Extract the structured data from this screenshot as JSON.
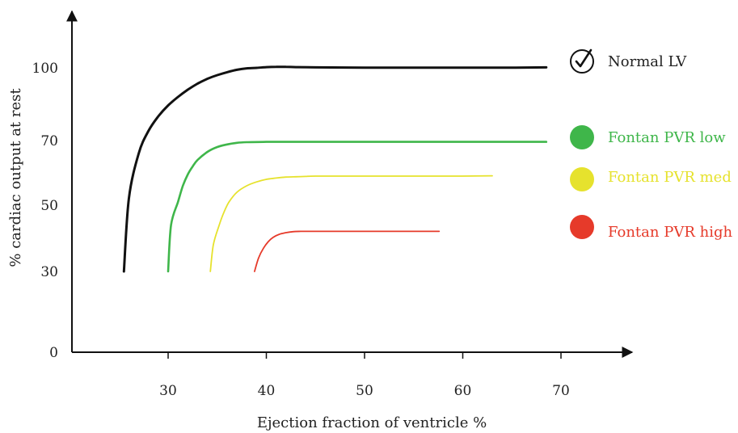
{
  "chart_data": {
    "type": "line",
    "title": "",
    "xlabel": "Ejection fraction of ventricle %",
    "ylabel": "% cardiac output at rest",
    "x_ticks": [
      30,
      40,
      50,
      60,
      70
    ],
    "y_ticks": [
      0,
      30,
      50,
      70,
      100
    ],
    "grid": false,
    "legend_position": "right",
    "series": [
      {
        "name": "Normal LV",
        "color": "#111111",
        "legend_marker": "check-circle-icon",
        "x": [
          25.5,
          26,
          27,
          28,
          29,
          30,
          31,
          32,
          33,
          34,
          35,
          36,
          37,
          38,
          39,
          40,
          41,
          42,
          43,
          45,
          50,
          55,
          60,
          65,
          68.5
        ],
        "y": [
          30,
          52,
          66,
          74,
          80,
          84.5,
          88,
          91,
          93.5,
          95.5,
          97,
          98.2,
          99.2,
          99.8,
          100,
          100.3,
          100.4,
          100.4,
          100.3,
          100.2,
          100.1,
          100.1,
          100.1,
          100.1,
          100.2
        ]
      },
      {
        "name": "Fontan PVR low",
        "color": "#3fb64a",
        "legend_marker": "circle",
        "x": [
          30,
          30.3,
          31,
          31.5,
          32,
          32.5,
          33,
          34,
          35,
          36,
          37,
          38,
          40,
          42,
          45,
          50,
          55,
          60,
          65,
          68.5
        ],
        "y": [
          30,
          44,
          51,
          56,
          59.5,
          62,
          64,
          66.5,
          68,
          68.8,
          69.3,
          69.5,
          69.6,
          69.6,
          69.6,
          69.6,
          69.6,
          69.6,
          69.6,
          69.6
        ]
      },
      {
        "name": "Fontan PVR med",
        "color": "#e6e22d",
        "legend_marker": "circle",
        "x": [
          34.3,
          34.6,
          35.2,
          35.7,
          36.2,
          37,
          38,
          39,
          40,
          41,
          42,
          43,
          44,
          45,
          50,
          55,
          60,
          63
        ],
        "y": [
          30,
          38,
          44,
          48,
          51,
          54,
          56,
          57.2,
          58,
          58.4,
          58.7,
          58.8,
          58.9,
          59,
          59,
          59,
          59,
          59.1
        ]
      },
      {
        "name": "Fontan PVR high",
        "color": "#e63a2a",
        "legend_marker": "circle",
        "x": [
          38.8,
          39.2,
          39.7,
          40.2,
          40.7,
          41.3,
          42,
          42.7,
          43.5,
          45,
          47,
          50,
          55,
          57.6
        ],
        "y": [
          30,
          34,
          37,
          39,
          40.3,
          41.2,
          41.7,
          42,
          42.1,
          42.1,
          42.1,
          42.1,
          42.1,
          42.1
        ]
      }
    ]
  }
}
